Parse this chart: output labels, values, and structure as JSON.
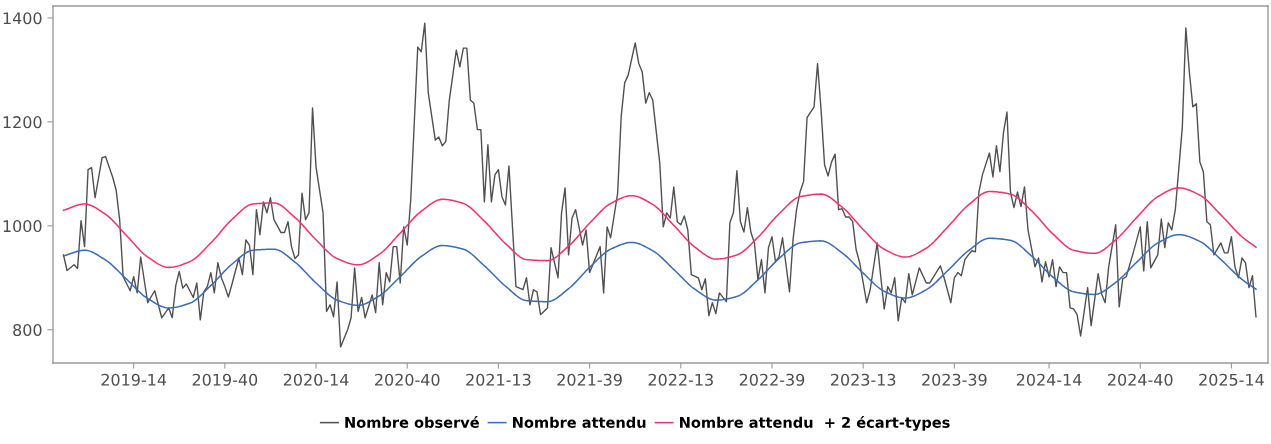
{
  "chart_data": {
    "type": "line",
    "xlim": [
      "2018-10-22",
      "2025-06-12"
    ],
    "ylim": [
      736,
      1423
    ],
    "xticks": [
      {
        "value": "2019-04-01",
        "label": "2019-14"
      },
      {
        "value": "2019-09-30",
        "label": "2019-40"
      },
      {
        "value": "2020-03-30",
        "label": "2020-14"
      },
      {
        "value": "2020-09-28",
        "label": "2020-40"
      },
      {
        "value": "2021-03-29",
        "label": "2021-13"
      },
      {
        "value": "2021-09-27",
        "label": "2021-39"
      },
      {
        "value": "2022-03-28",
        "label": "2022-13"
      },
      {
        "value": "2022-09-26",
        "label": "2022-39"
      },
      {
        "value": "2023-03-27",
        "label": "2023-13"
      },
      {
        "value": "2023-09-25",
        "label": "2023-39"
      },
      {
        "value": "2024-04-01",
        "label": "2024-14"
      },
      {
        "value": "2024-09-30",
        "label": "2024-40"
      },
      {
        "value": "2025-03-31",
        "label": "2025-14"
      }
    ],
    "yticks": [
      800,
      1000,
      1200,
      1400
    ],
    "grid": false,
    "legend": "bottom",
    "marker": "none",
    "line_style": "solid",
    "series": [
      {
        "name": "Nombre observé",
        "color": "#505050",
        "x": [
          "2018-11-12",
          "2018-11-19",
          "2018-12-03",
          "2018-12-10",
          "2018-12-17",
          "2018-12-24",
          "2018-12-31",
          "2019-01-07",
          "2019-01-14",
          "2019-01-28",
          "2019-02-04",
          "2019-02-18",
          "2019-02-25",
          "2019-03-04",
          "2019-03-11",
          "2019-03-25",
          "2019-04-01",
          "2019-04-08",
          "2019-04-15",
          "2019-04-29",
          "2019-05-13",
          "2019-05-27",
          "2019-06-10",
          "2019-06-17",
          "2019-06-24",
          "2019-07-01",
          "2019-07-08",
          "2019-07-15",
          "2019-07-29",
          "2019-08-05",
          "2019-08-12",
          "2019-08-19",
          "2019-08-26",
          "2019-09-02",
          "2019-09-09",
          "2019-09-16",
          "2019-09-23",
          "2019-09-30",
          "2019-10-07",
          "2019-10-14",
          "2019-10-28",
          "2019-11-04",
          "2019-11-11",
          "2019-11-18",
          "2019-11-25",
          "2019-12-02",
          "2019-12-09",
          "2019-12-16",
          "2019-12-23",
          "2019-12-30",
          "2020-01-06",
          "2020-01-20",
          "2020-01-27",
          "2020-02-03",
          "2020-02-10",
          "2020-02-17",
          "2020-02-24",
          "2020-03-02",
          "2020-03-09",
          "2020-03-16",
          "2020-03-23",
          "2020-03-30",
          "2020-04-13",
          "2020-04-20",
          "2020-04-27",
          "2020-05-04",
          "2020-05-11",
          "2020-05-18",
          "2020-06-01",
          "2020-06-08",
          "2020-06-15",
          "2020-06-22",
          "2020-06-29",
          "2020-07-06",
          "2020-07-20",
          "2020-07-27",
          "2020-08-03",
          "2020-08-10",
          "2020-08-17",
          "2020-08-24",
          "2020-08-31",
          "2020-09-07",
          "2020-09-14",
          "2020-09-21",
          "2020-09-28",
          "2020-10-05",
          "2020-10-19",
          "2020-10-26",
          "2020-11-02",
          "2020-11-09",
          "2020-11-23",
          "2020-11-30",
          "2020-12-07",
          "2020-12-14",
          "2020-12-21",
          "2021-01-04",
          "2021-01-11",
          "2021-01-18",
          "2021-01-25",
          "2021-02-01",
          "2021-02-08",
          "2021-02-15",
          "2021-02-22",
          "2021-03-01",
          "2021-03-08",
          "2021-03-15",
          "2021-03-22",
          "2021-03-29",
          "2021-04-05",
          "2021-04-12",
          "2021-04-19",
          "2021-05-03",
          "2021-05-17",
          "2021-05-24",
          "2021-05-31",
          "2021-06-07",
          "2021-06-14",
          "2021-06-21",
          "2021-07-05",
          "2021-07-12",
          "2021-07-26",
          "2021-08-02",
          "2021-08-09",
          "2021-08-16",
          "2021-08-23",
          "2021-08-30",
          "2021-09-13",
          "2021-09-20",
          "2021-09-27",
          "2021-10-18",
          "2021-10-25",
          "2021-11-01",
          "2021-11-08",
          "2021-11-22",
          "2021-11-29",
          "2021-12-06",
          "2021-12-13",
          "2021-12-27",
          "2022-01-03",
          "2022-01-10",
          "2022-01-17",
          "2022-01-24",
          "2022-01-31",
          "2022-02-14",
          "2022-02-21",
          "2022-02-28",
          "2022-03-07",
          "2022-03-14",
          "2022-03-21",
          "2022-03-28",
          "2022-04-04",
          "2022-04-11",
          "2022-04-18",
          "2022-05-02",
          "2022-05-09",
          "2022-05-16",
          "2022-05-23",
          "2022-05-30",
          "2022-06-06",
          "2022-06-13",
          "2022-06-27",
          "2022-07-04",
          "2022-07-11",
          "2022-07-18",
          "2022-07-25",
          "2022-08-01",
          "2022-08-08",
          "2022-08-15",
          "2022-08-22",
          "2022-08-29",
          "2022-09-05",
          "2022-09-12",
          "2022-09-19",
          "2022-09-26",
          "2022-10-03",
          "2022-10-10",
          "2022-10-17",
          "2022-10-31",
          "2022-11-07",
          "2022-11-14",
          "2022-11-21",
          "2022-11-28",
          "2022-12-05",
          "2022-12-19",
          "2022-12-26",
          "2023-01-02",
          "2023-01-09",
          "2023-01-16",
          "2023-01-23",
          "2023-01-30",
          "2023-02-06",
          "2023-02-13",
          "2023-02-20",
          "2023-02-27",
          "2023-03-06",
          "2023-03-13",
          "2023-03-20",
          "2023-04-03",
          "2023-04-10",
          "2023-04-24",
          "2023-05-08",
          "2023-05-15",
          "2023-05-22",
          "2023-05-29",
          "2023-06-05",
          "2023-06-12",
          "2023-06-19",
          "2023-06-26",
          "2023-07-03",
          "2023-07-17",
          "2023-07-31",
          "2023-08-07",
          "2023-08-28",
          "2023-09-04",
          "2023-09-18",
          "2023-09-25",
          "2023-10-02",
          "2023-10-09",
          "2023-10-16",
          "2023-10-23",
          "2023-10-30",
          "2023-11-06",
          "2023-11-13",
          "2023-11-20",
          "2023-12-04",
          "2023-12-11",
          "2023-12-18",
          "2023-12-25",
          "2024-01-01",
          "2024-01-08",
          "2024-01-15",
          "2024-01-22",
          "2024-01-29",
          "2024-02-05",
          "2024-02-12",
          "2024-02-19",
          "2024-03-04",
          "2024-03-11",
          "2024-03-18",
          "2024-03-25",
          "2024-04-01",
          "2024-04-08",
          "2024-04-15",
          "2024-04-22",
          "2024-04-29",
          "2024-05-06",
          "2024-05-13",
          "2024-05-20",
          "2024-05-27",
          "2024-06-03",
          "2024-06-17",
          "2024-06-24",
          "2024-07-08",
          "2024-07-15",
          "2024-07-22",
          "2024-07-29",
          "2024-08-12",
          "2024-08-19",
          "2024-08-26",
          "2024-09-02",
          "2024-09-16",
          "2024-09-30",
          "2024-10-07",
          "2024-10-14",
          "2024-10-21",
          "2024-11-04",
          "2024-11-11",
          "2024-11-18",
          "2024-11-25",
          "2024-12-02",
          "2024-12-09",
          "2024-12-23",
          "2024-12-30",
          "2025-01-06",
          "2025-01-13",
          "2025-01-20",
          "2025-01-27",
          "2025-02-03",
          "2025-02-10",
          "2025-02-17",
          "2025-02-24",
          "2025-03-10",
          "2025-03-17",
          "2025-03-24",
          "2025-03-31",
          "2025-04-07",
          "2025-04-14",
          "2025-04-21",
          "2025-04-28",
          "2025-05-05",
          "2025-05-12",
          "2025-05-19"
        ],
        "values": [
          944,
          914,
          925,
          918,
          1010,
          960,
          1108,
          1112,
          1054,
          1131,
          1133,
          1094,
          1069,
          1012,
          902,
          875,
          902,
          871,
          940,
          852,
          875,
          823,
          842,
          823,
          885,
          912,
          880,
          888,
          862,
          890,
          819,
          873,
          883,
          910,
          871,
          929,
          900,
          883,
          863,
          887,
          938,
          906,
          973,
          963,
          906,
          1031,
          983,
          1046,
          1025,
          1054,
          1012,
          987,
          987,
          1008,
          960,
          937,
          944,
          1063,
          1012,
          1025,
          1227,
          1113,
          1025,
          835,
          848,
          825,
          892,
          767,
          800,
          823,
          919,
          835,
          862,
          823,
          867,
          833,
          929,
          848,
          910,
          892,
          960,
          960,
          890,
          998,
          963,
          1050,
          1344,
          1335,
          1390,
          1256,
          1165,
          1171,
          1154,
          1162,
          1242,
          1338,
          1306,
          1342,
          1342,
          1242,
          1236,
          1185,
          1185,
          1046,
          1156,
          1046,
          1098,
          1108,
          1056,
          1040,
          1115,
          883,
          877,
          900,
          848,
          877,
          873,
          829,
          842,
          958,
          900,
          1025,
          1073,
          944,
          1015,
          1031,
          963,
          992,
          910,
          960,
          871,
          998,
          977,
          1063,
          1210,
          1275,
          1290,
          1352,
          1313,
          1296,
          1236,
          1256,
          1242,
          1121,
          998,
          1025,
          1015,
          1075,
          1008,
          1002,
          1019,
          992,
          906,
          900,
          877,
          898,
          827,
          852,
          831,
          871,
          854,
          1006,
          1025,
          1106,
          1008,
          988,
          1035,
          987,
          967,
          896,
          935,
          871,
          958,
          979,
          931,
          940,
          977,
          873,
          973,
          1031,
          1065,
          1085,
          1208,
          1229,
          1312,
          1223,
          1117,
          1096,
          1123,
          1138,
          1031,
          1033,
          1017,
          1017,
          1008,
          954,
          929,
          852,
          877,
          967,
          840,
          883,
          871,
          900,
          817,
          862,
          852,
          908,
          867,
          919,
          890,
          890,
          923,
          902,
          852,
          900,
          910,
          904,
          935,
          944,
          952,
          950,
          1065,
          1098,
          1140,
          1094,
          1154,
          1104,
          1179,
          1219,
          1065,
          1035,
          1065,
          1037,
          1075,
          992,
          921,
          938,
          892,
          931,
          902,
          935,
          883,
          921,
          910,
          910,
          842,
          840,
          829,
          788,
          881,
          808,
          908,
          869,
          852,
          921,
          1002,
          844,
          898,
          902,
          948,
          998,
          913,
          1008,
          919,
          944,
          1013,
          958,
          1006,
          992,
          1031,
          1190,
          1381,
          1296,
          1229,
          1235,
          1123,
          1104,
          1008,
          1002,
          944,
          967,
          948,
          948,
          979,
          921,
          900,
          938,
          929,
          881,
          904,
          825
        ]
      },
      {
        "name": "Nombre attendu",
        "color": "#3b6cb4",
        "x": [
          "2018-11-12",
          "2018-12-24",
          "2019-02-04",
          "2019-03-18",
          "2019-04-29",
          "2019-06-10",
          "2019-07-22",
          "2019-09-02",
          "2019-10-14",
          "2019-11-25",
          "2020-01-06",
          "2020-02-17",
          "2020-03-30",
          "2020-05-11",
          "2020-06-22",
          "2020-08-03",
          "2020-09-14",
          "2020-10-26",
          "2020-12-07",
          "2021-01-18",
          "2021-03-01",
          "2021-04-12",
          "2021-05-24",
          "2021-07-05",
          "2021-08-16",
          "2021-09-27",
          "2021-11-08",
          "2021-12-20",
          "2022-01-31",
          "2022-03-14",
          "2022-04-25",
          "2022-06-06",
          "2022-07-18",
          "2022-08-29",
          "2022-10-10",
          "2022-11-21",
          "2023-01-02",
          "2023-02-13",
          "2023-03-27",
          "2023-05-08",
          "2023-06-19",
          "2023-07-31",
          "2023-09-11",
          "2023-10-23",
          "2023-12-04",
          "2024-01-15",
          "2024-02-26",
          "2024-04-08",
          "2024-05-20",
          "2024-07-01",
          "2024-08-12",
          "2024-09-23",
          "2024-11-04",
          "2024-12-16",
          "2025-01-27",
          "2025-03-10",
          "2025-04-21",
          "2025-05-19"
        ],
        "values": [
          942,
          953,
          934,
          897,
          860,
          842,
          851,
          885,
          926,
          953,
          955,
          930,
          890,
          857,
          847,
          865,
          902,
          941,
          962,
          955,
          923,
          884,
          856,
          854,
          879,
          920,
          955,
          968,
          952,
          916,
          878,
          857,
          864,
          896,
          937,
          967,
          971,
          948,
          909,
          874,
          861,
          877,
          913,
          952,
          976,
          972,
          942,
          902,
          873,
          868,
          891,
          930,
          967,
          983,
          970,
          935,
          897,
          878
        ]
      },
      {
        "name": "Nombre attendu  + 2 écart-types",
        "color": "#f0336e",
        "x": [
          "2018-11-12",
          "2018-12-24",
          "2019-02-04",
          "2019-03-18",
          "2019-04-29",
          "2019-06-10",
          "2019-07-22",
          "2019-09-02",
          "2019-10-14",
          "2019-11-25",
          "2020-01-06",
          "2020-02-17",
          "2020-03-30",
          "2020-05-11",
          "2020-06-22",
          "2020-08-03",
          "2020-09-14",
          "2020-10-26",
          "2020-12-07",
          "2021-01-18",
          "2021-03-01",
          "2021-04-12",
          "2021-05-24",
          "2021-07-05",
          "2021-08-16",
          "2021-09-27",
          "2021-11-08",
          "2021-12-20",
          "2022-01-31",
          "2022-03-14",
          "2022-04-25",
          "2022-06-06",
          "2022-07-18",
          "2022-08-29",
          "2022-10-10",
          "2022-11-21",
          "2023-01-02",
          "2023-02-13",
          "2023-03-27",
          "2023-05-08",
          "2023-06-19",
          "2023-07-31",
          "2023-09-11",
          "2023-10-23",
          "2023-12-04",
          "2024-01-15",
          "2024-02-26",
          "2024-04-08",
          "2024-05-20",
          "2024-07-01",
          "2024-08-12",
          "2024-09-23",
          "2024-11-04",
          "2024-12-16",
          "2025-01-27",
          "2025-03-10",
          "2025-04-21",
          "2025-05-19"
        ],
        "values": [
          1030,
          1042,
          1022,
          981,
          940,
          920,
          931,
          967,
          1012,
          1042,
          1044,
          1016,
          973,
          937,
          925,
          945,
          986,
          1028,
          1051,
          1043,
          1009,
          966,
          935,
          933,
          961,
          1005,
          1043,
          1058,
          1041,
          1001,
          959,
          936,
          944,
          978,
          1023,
          1056,
          1061,
          1036,
          993,
          955,
          940,
          957,
          997,
          1040,
          1066,
          1061,
          1029,
          985,
          953,
          947,
          973,
          1016,
          1056,
          1073,
          1059,
          1021,
          979,
          959
        ]
      }
    ]
  }
}
